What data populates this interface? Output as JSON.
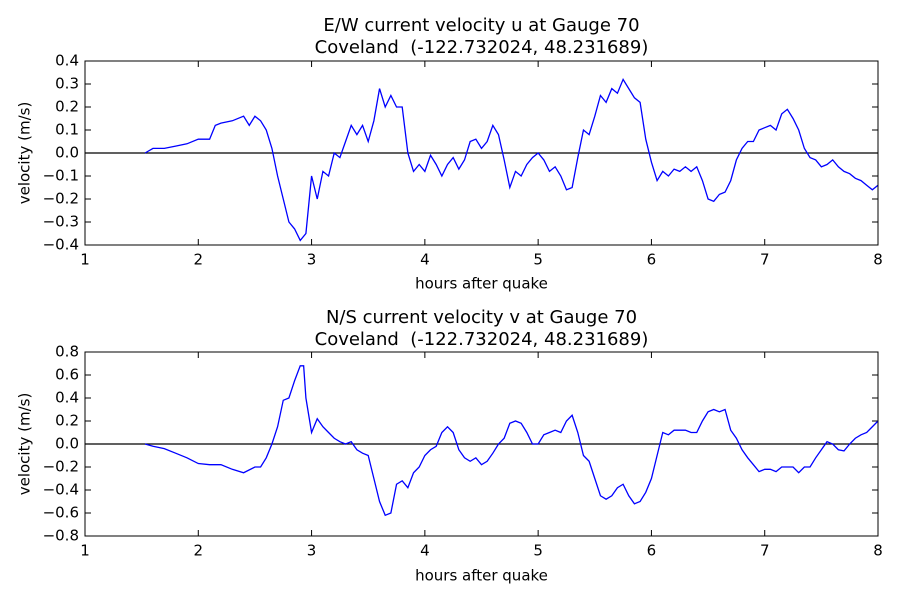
{
  "chart_data": [
    {
      "type": "line",
      "title": "E/W current velocity u at Gauge 70",
      "subtitle": "Coveland  (-122.732024, 48.231689)",
      "xlabel": "hours after quake",
      "ylabel": "velocity (m/s)",
      "xlim": [
        1,
        8
      ],
      "xticks": [
        1,
        2,
        3,
        4,
        5,
        6,
        7,
        8
      ],
      "ylim": [
        -0.4,
        0.4
      ],
      "yticks": [
        {
          "value": -0.4,
          "label": "−0.4"
        },
        {
          "value": -0.3,
          "label": "−0.3"
        },
        {
          "value": -0.2,
          "label": "−0.2"
        },
        {
          "value": -0.1,
          "label": "−0.1"
        },
        {
          "value": 0,
          "label": "0.0"
        },
        0.1,
        0.2,
        0.3,
        0.4
      ],
      "reference_line": 0,
      "series": [
        {
          "name": "u",
          "color": "#0000ff",
          "x": [
            1.53,
            1.6,
            1.7,
            1.8,
            1.9,
            2.0,
            2.1,
            2.15,
            2.2,
            2.3,
            2.4,
            2.45,
            2.5,
            2.55,
            2.6,
            2.65,
            2.7,
            2.75,
            2.8,
            2.85,
            2.9,
            2.95,
            3.0,
            3.05,
            3.1,
            3.15,
            3.2,
            3.25,
            3.3,
            3.35,
            3.4,
            3.45,
            3.5,
            3.55,
            3.6,
            3.65,
            3.7,
            3.75,
            3.8,
            3.85,
            3.9,
            3.95,
            4.0,
            4.05,
            4.1,
            4.15,
            4.2,
            4.25,
            4.3,
            4.35,
            4.4,
            4.45,
            4.5,
            4.55,
            4.6,
            4.65,
            4.7,
            4.75,
            4.8,
            4.85,
            4.9,
            4.95,
            5.0,
            5.05,
            5.1,
            5.15,
            5.2,
            5.25,
            5.3,
            5.35,
            5.4,
            5.45,
            5.5,
            5.55,
            5.6,
            5.65,
            5.7,
            5.75,
            5.8,
            5.85,
            5.9,
            5.95,
            6.0,
            6.05,
            6.1,
            6.15,
            6.2,
            6.25,
            6.3,
            6.35,
            6.4,
            6.45,
            6.5,
            6.55,
            6.6,
            6.65,
            6.7,
            6.75,
            6.8,
            6.85,
            6.9,
            6.95,
            7.0,
            7.05,
            7.1,
            7.15,
            7.2,
            7.25,
            7.3,
            7.35,
            7.4,
            7.45,
            7.5,
            7.55,
            7.6,
            7.65,
            7.7,
            7.75,
            7.8,
            7.85,
            7.9,
            7.95,
            8.0
          ],
          "values": [
            0.0,
            0.02,
            0.02,
            0.03,
            0.04,
            0.06,
            0.06,
            0.12,
            0.13,
            0.14,
            0.16,
            0.12,
            0.16,
            0.14,
            0.1,
            0.02,
            -0.1,
            -0.2,
            -0.3,
            -0.33,
            -0.38,
            -0.35,
            -0.1,
            -0.2,
            -0.08,
            -0.1,
            0.0,
            -0.02,
            0.05,
            0.12,
            0.08,
            0.12,
            0.05,
            0.14,
            0.28,
            0.2,
            0.25,
            0.2,
            0.2,
            0.0,
            -0.08,
            -0.05,
            -0.08,
            -0.01,
            -0.05,
            -0.1,
            -0.05,
            -0.02,
            -0.07,
            -0.03,
            0.05,
            0.06,
            0.02,
            0.05,
            0.12,
            0.08,
            -0.03,
            -0.15,
            -0.08,
            -0.1,
            -0.05,
            -0.02,
            0.0,
            -0.03,
            -0.08,
            -0.06,
            -0.1,
            -0.16,
            -0.15,
            -0.02,
            0.1,
            0.08,
            0.16,
            0.25,
            0.22,
            0.28,
            0.26,
            0.32,
            0.28,
            0.24,
            0.22,
            0.06,
            -0.04,
            -0.12,
            -0.08,
            -0.1,
            -0.07,
            -0.08,
            -0.06,
            -0.08,
            -0.06,
            -0.12,
            -0.2,
            -0.21,
            -0.18,
            -0.17,
            -0.12,
            -0.03,
            0.02,
            0.05,
            0.05,
            0.1,
            0.11,
            0.12,
            0.1,
            0.17,
            0.19,
            0.15,
            0.1,
            0.02,
            -0.02,
            -0.03,
            -0.06,
            -0.05,
            -0.03,
            -0.06,
            -0.08,
            -0.09,
            -0.11,
            -0.12,
            -0.14,
            -0.16,
            -0.14
          ]
        }
      ]
    },
    {
      "type": "line",
      "title": "N/S current velocity v at Gauge 70",
      "subtitle": "Coveland  (-122.732024, 48.231689)",
      "xlabel": "hours after quake",
      "ylabel": "velocity (m/s)",
      "xlim": [
        1,
        8
      ],
      "xticks": [
        1,
        2,
        3,
        4,
        5,
        6,
        7,
        8
      ],
      "ylim": [
        -0.8,
        0.8
      ],
      "yticks": [
        {
          "value": -0.8,
          "label": "−0.8"
        },
        {
          "value": -0.6,
          "label": "−0.6"
        },
        {
          "value": -0.4,
          "label": "−0.4"
        },
        {
          "value": -0.2,
          "label": "−0.2"
        },
        {
          "value": 0,
          "label": "0.0"
        },
        0.2,
        0.4,
        0.6,
        0.8
      ],
      "reference_line": 0,
      "series": [
        {
          "name": "v",
          "color": "#0000ff",
          "x": [
            1.53,
            1.6,
            1.7,
            1.8,
            1.9,
            2.0,
            2.1,
            2.2,
            2.3,
            2.4,
            2.5,
            2.55,
            2.6,
            2.65,
            2.7,
            2.75,
            2.8,
            2.85,
            2.9,
            2.93,
            2.95,
            3.0,
            3.05,
            3.1,
            3.15,
            3.2,
            3.25,
            3.3,
            3.35,
            3.4,
            3.45,
            3.5,
            3.55,
            3.6,
            3.65,
            3.7,
            3.75,
            3.8,
            3.85,
            3.9,
            3.95,
            4.0,
            4.05,
            4.1,
            4.15,
            4.2,
            4.25,
            4.3,
            4.35,
            4.4,
            4.45,
            4.5,
            4.55,
            4.6,
            4.65,
            4.7,
            4.75,
            4.8,
            4.85,
            4.9,
            4.95,
            5.0,
            5.05,
            5.1,
            5.15,
            5.2,
            5.25,
            5.3,
            5.35,
            5.4,
            5.45,
            5.5,
            5.55,
            5.6,
            5.65,
            5.7,
            5.75,
            5.8,
            5.85,
            5.9,
            5.95,
            6.0,
            6.05,
            6.1,
            6.15,
            6.2,
            6.25,
            6.3,
            6.35,
            6.4,
            6.45,
            6.5,
            6.55,
            6.6,
            6.65,
            6.7,
            6.75,
            6.8,
            6.85,
            6.9,
            6.95,
            7.0,
            7.05,
            7.1,
            7.15,
            7.2,
            7.25,
            7.3,
            7.35,
            7.4,
            7.45,
            7.5,
            7.55,
            7.6,
            7.65,
            7.7,
            7.75,
            7.8,
            7.85,
            7.9,
            7.95,
            8.0
          ],
          "values": [
            0.0,
            -0.02,
            -0.04,
            -0.08,
            -0.12,
            -0.17,
            -0.18,
            -0.18,
            -0.22,
            -0.25,
            -0.2,
            -0.2,
            -0.12,
            0.0,
            0.15,
            0.38,
            0.4,
            0.55,
            0.68,
            0.68,
            0.4,
            0.1,
            0.22,
            0.15,
            0.1,
            0.05,
            0.02,
            0.0,
            0.02,
            -0.05,
            -0.08,
            -0.1,
            -0.3,
            -0.5,
            -0.62,
            -0.6,
            -0.35,
            -0.32,
            -0.38,
            -0.25,
            -0.2,
            -0.1,
            -0.05,
            -0.02,
            0.1,
            0.15,
            0.1,
            -0.05,
            -0.12,
            -0.15,
            -0.12,
            -0.18,
            -0.15,
            -0.08,
            0.0,
            0.05,
            0.18,
            0.2,
            0.18,
            0.1,
            0.0,
            0.0,
            0.08,
            0.1,
            0.12,
            0.1,
            0.2,
            0.25,
            0.1,
            -0.1,
            -0.15,
            -0.3,
            -0.45,
            -0.48,
            -0.45,
            -0.38,
            -0.35,
            -0.45,
            -0.52,
            -0.5,
            -0.42,
            -0.3,
            -0.1,
            0.1,
            0.08,
            0.12,
            0.12,
            0.12,
            0.1,
            0.1,
            0.2,
            0.28,
            0.3,
            0.28,
            0.3,
            0.12,
            0.05,
            -0.05,
            -0.12,
            -0.18,
            -0.24,
            -0.22,
            -0.22,
            -0.24,
            -0.2,
            -0.2,
            -0.2,
            -0.25,
            -0.2,
            -0.2,
            -0.12,
            -0.05,
            0.02,
            0.0,
            -0.05,
            -0.06,
            0.0,
            0.05,
            0.08,
            0.1,
            0.15,
            0.2
          ]
        }
      ]
    }
  ]
}
